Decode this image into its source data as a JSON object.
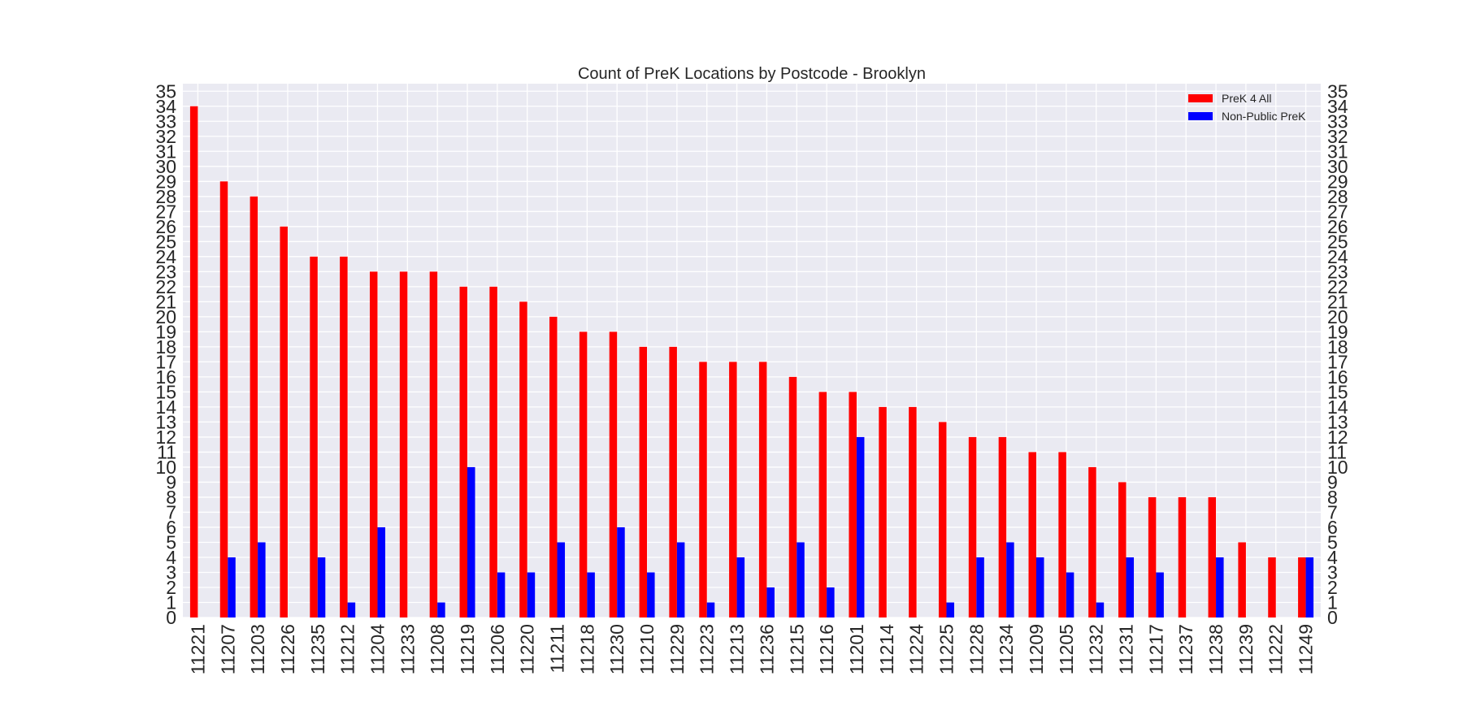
{
  "chart_data": {
    "type": "bar",
    "title": "Count of PreK Locations by Postcode - Brooklyn",
    "xlabel": "",
    "ylabel": "",
    "ylim": [
      0,
      35
    ],
    "yticks": [
      0,
      1,
      2,
      3,
      4,
      5,
      6,
      7,
      8,
      9,
      10,
      11,
      12,
      13,
      14,
      15,
      16,
      17,
      18,
      19,
      20,
      21,
      22,
      23,
      24,
      25,
      26,
      27,
      28,
      29,
      30,
      31,
      32,
      33,
      34,
      35
    ],
    "grid": true,
    "legend_position": "top-right",
    "mirrored_y_axis": true,
    "categories": [
      "11221",
      "11207",
      "11203",
      "11226",
      "11235",
      "11212",
      "11204",
      "11233",
      "11208",
      "11219",
      "11206",
      "11220",
      "11211",
      "11218",
      "11230",
      "11210",
      "11229",
      "11223",
      "11213",
      "11236",
      "11215",
      "11216",
      "11201",
      "11214",
      "11224",
      "11225",
      "11228",
      "11234",
      "11209",
      "11205",
      "11232",
      "11231",
      "11217",
      "11237",
      "11238",
      "11239",
      "11222",
      "11249"
    ],
    "series": [
      {
        "name": "PreK 4 All",
        "color": "#ff0000",
        "values": [
          34,
          29,
          28,
          26,
          24,
          24,
          23,
          23,
          23,
          22,
          22,
          21,
          20,
          19,
          19,
          18,
          18,
          17,
          17,
          17,
          16,
          15,
          15,
          14,
          14,
          13,
          12,
          12,
          11,
          11,
          10,
          9,
          8,
          8,
          8,
          5,
          4,
          4
        ]
      },
      {
        "name": "Non-Public PreK",
        "color": "#0000ff",
        "values": [
          0,
          4,
          5,
          0,
          4,
          1,
          6,
          0,
          1,
          10,
          3,
          3,
          5,
          3,
          6,
          3,
          5,
          1,
          4,
          2,
          5,
          2,
          12,
          0,
          0,
          1,
          4,
          5,
          4,
          3,
          1,
          4,
          3,
          0,
          4,
          0,
          0,
          4
        ]
      }
    ]
  },
  "style": {
    "plot_background": "#eaeaf2",
    "grid_color": "#ffffff"
  }
}
